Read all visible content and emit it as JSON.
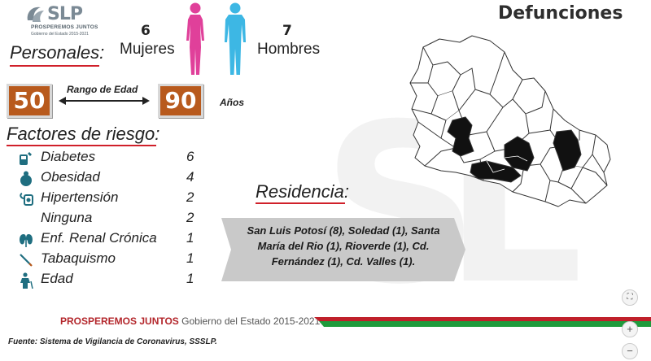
{
  "logo": {
    "name": "SLP",
    "tagline": "PROSPEREMOS JUNTOS",
    "subline": "Gobierno del Estado 2015-2021"
  },
  "title": "Defunciones",
  "personales": {
    "header": "Personales:",
    "female_count": "6",
    "female_label": "Mujeres",
    "male_count": "7",
    "male_label": "Hombres",
    "female_color": "#e0409a",
    "male_color": "#3db7e4"
  },
  "age": {
    "min": "50",
    "max": "90",
    "range_label": "Rango de Edad",
    "unit": "Años",
    "box_color": "#b85a1d"
  },
  "risk_factors": {
    "header": "Factores de riesgo:",
    "items": [
      {
        "label": "Diabetes",
        "value": "6",
        "icon": "glucometer-icon"
      },
      {
        "label": "Obesidad",
        "value": "4",
        "icon": "obesity-icon"
      },
      {
        "label": "Hipertensión",
        "value": "2",
        "icon": "blood-pressure-icon"
      },
      {
        "label": "Ninguna",
        "value": "2",
        "icon": ""
      },
      {
        "label": "Enf. Renal Crónica",
        "value": "1",
        "icon": "kidney-icon"
      },
      {
        "label": "Tabaquismo",
        "value": "1",
        "icon": "cigarette-icon"
      },
      {
        "label": "Edad",
        "value": "1",
        "icon": "elderly-icon"
      }
    ]
  },
  "residencia": {
    "header": "Residencia:",
    "text_line1": "San Luis Potosí (8), Soledad (1), Santa",
    "text_line2": "María del Rio (1), Rioverde (1), Cd.",
    "text_line3": "Fernández (1), Cd. Valles (1)."
  },
  "footer": {
    "brand_bold": "PROSPEREMOS JUNTOS",
    "brand_rest": "Gobierno del Estado 2015-2021",
    "source": "Fuente: Sistema de Vigilancia de Coronavirus, SSSLP.",
    "accent_red": "#c0202a",
    "accent_green": "#1e9b3c"
  },
  "controls": {
    "fit": "⛶",
    "zoom_in": "+",
    "zoom_out": "−"
  }
}
